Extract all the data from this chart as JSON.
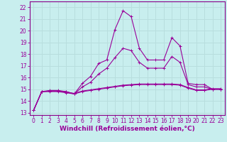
{
  "xlabel": "Windchill (Refroidissement éolien,°C)",
  "bg_color": "#c8eeee",
  "grid_color": "#b8dede",
  "line_color": "#990099",
  "spine_color": "#880088",
  "xlim": [
    -0.5,
    23.5
  ],
  "ylim": [
    12.8,
    22.5
  ],
  "x_ticks": [
    0,
    1,
    2,
    3,
    4,
    5,
    6,
    7,
    8,
    9,
    10,
    11,
    12,
    13,
    14,
    15,
    16,
    17,
    18,
    19,
    20,
    21,
    22,
    23
  ],
  "y_ticks": [
    13,
    14,
    15,
    16,
    17,
    18,
    19,
    20,
    21,
    22
  ],
  "series_flat_x": [
    0,
    1,
    2,
    3,
    4,
    5,
    6,
    7,
    8,
    9,
    10,
    11,
    12,
    13,
    14,
    15,
    16,
    17,
    18,
    19,
    20,
    21,
    22,
    23
  ],
  "series_flat_y": [
    13.2,
    14.8,
    14.8,
    14.8,
    14.7,
    14.6,
    14.8,
    14.9,
    15.0,
    15.1,
    15.2,
    15.3,
    15.35,
    15.4,
    15.4,
    15.4,
    15.4,
    15.4,
    15.35,
    15.1,
    14.9,
    14.9,
    15.0,
    15.0
  ],
  "series_flat2_x": [
    0,
    1,
    2,
    3,
    4,
    5,
    6,
    7,
    8,
    9,
    10,
    11,
    12,
    13,
    14,
    15,
    16,
    17,
    18,
    19,
    20,
    21,
    22,
    23
  ],
  "series_flat2_y": [
    13.2,
    14.8,
    14.85,
    14.85,
    14.75,
    14.65,
    14.85,
    14.95,
    15.05,
    15.15,
    15.25,
    15.35,
    15.4,
    15.45,
    15.45,
    15.45,
    15.45,
    15.45,
    15.4,
    15.15,
    14.95,
    14.95,
    15.05,
    15.05
  ],
  "series_main_x": [
    0,
    1,
    2,
    3,
    4,
    5,
    6,
    7,
    8,
    9,
    10,
    11,
    12,
    13,
    14,
    15,
    16,
    17,
    18,
    19,
    20,
    21,
    22,
    23
  ],
  "series_main_y": [
    13.2,
    14.8,
    14.9,
    14.9,
    14.8,
    14.6,
    15.5,
    16.1,
    17.2,
    17.5,
    20.1,
    21.7,
    21.2,
    18.5,
    17.5,
    17.5,
    17.5,
    19.4,
    18.7,
    15.5,
    15.4,
    15.4,
    15.0,
    15.0
  ],
  "series_mid_x": [
    0,
    1,
    2,
    3,
    4,
    5,
    6,
    7,
    8,
    9,
    10,
    11,
    12,
    13,
    14,
    15,
    16,
    17,
    18,
    19,
    20,
    21,
    22,
    23
  ],
  "series_mid_y": [
    13.2,
    14.8,
    14.85,
    14.85,
    14.8,
    14.6,
    15.2,
    15.6,
    16.3,
    16.8,
    17.7,
    18.5,
    18.3,
    17.3,
    16.8,
    16.8,
    16.8,
    17.8,
    17.3,
    15.4,
    15.2,
    15.2,
    15.0,
    15.0
  ],
  "fontsize_tick": 5.5,
  "fontsize_label": 6.5
}
